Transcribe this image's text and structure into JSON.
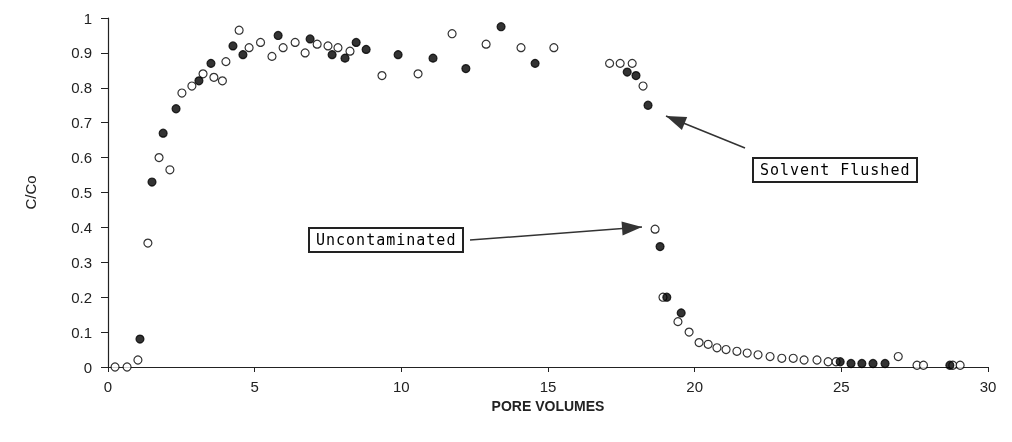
{
  "chart_data": {
    "type": "scatter",
    "xlabel": "PORE VOLUMES",
    "ylabel": "C/Co",
    "xlim": [
      0,
      30
    ],
    "xticks": [
      0,
      5,
      10,
      15,
      20,
      25,
      30
    ],
    "ylim": [
      0,
      1
    ],
    "yticks": [
      0,
      0.1,
      0.2,
      0.3,
      0.4,
      0.5,
      0.6,
      0.7,
      0.8,
      0.9,
      1
    ],
    "grid": false,
    "marker": "circle",
    "annotations": [
      "Uncontaminated",
      "Solvent Flushed"
    ],
    "series": [
      {
        "color": "#ffffff",
        "x": [
          0.24,
          0.65,
          1.02,
          1.36,
          1.74,
          2.11,
          2.52,
          2.86,
          3.24,
          3.61,
          3.9,
          4.02,
          4.47,
          4.81,
          5.2,
          5.59,
          5.97,
          6.38,
          6.72,
          7.13,
          7.5,
          7.84,
          8.25,
          9.34,
          10.57,
          11.73,
          12.89,
          14.08,
          15.2,
          17.1,
          17.46,
          17.87,
          18.24,
          18.65,
          18.92,
          19.43,
          19.81,
          20.15,
          20.46,
          20.76,
          21.07,
          21.44,
          21.79,
          22.16,
          22.57,
          22.97,
          23.36,
          23.73,
          24.17,
          24.55,
          24.82,
          26.94,
          27.58,
          27.8,
          28.8,
          29.05
        ],
        "values": [
          0,
          0,
          0.02,
          0.355,
          0.6,
          0.565,
          0.785,
          0.805,
          0.84,
          0.83,
          0.82,
          0.875,
          0.965,
          0.915,
          0.93,
          0.89,
          0.915,
          0.93,
          0.9,
          0.925,
          0.92,
          0.915,
          0.905,
          0.835,
          0.84,
          0.955,
          0.925,
          0.915,
          0.915,
          0.87,
          0.87,
          0.87,
          0.805,
          0.395,
          0.2,
          0.13,
          0.1,
          0.07,
          0.065,
          0.055,
          0.05,
          0.045,
          0.04,
          0.035,
          0.03,
          0.025,
          0.025,
          0.02,
          0.02,
          0.015,
          0.015,
          0.03,
          0.005,
          0.005,
          0.005,
          0.005
        ]
      },
      {
        "color": "#000000",
        "x": [
          1.09,
          1.5,
          1.88,
          2.32,
          3.1,
          3.51,
          4.26,
          4.6,
          5.8,
          6.89,
          7.64,
          8.08,
          8.46,
          8.8,
          9.89,
          11.08,
          12.2,
          13.4,
          14.56,
          17.7,
          18.0,
          18.41,
          18.82,
          19.05,
          19.54,
          24.96,
          25.33,
          25.7,
          26.08,
          26.49,
          28.7
        ],
        "values": [
          0.08,
          0.53,
          0.67,
          0.74,
          0.82,
          0.87,
          0.92,
          0.895,
          0.95,
          0.94,
          0.895,
          0.885,
          0.93,
          0.91,
          0.895,
          0.885,
          0.855,
          0.975,
          0.87,
          0.845,
          0.835,
          0.75,
          0.345,
          0.2,
          0.155,
          0.015,
          0.01,
          0.01,
          0.01,
          0.01,
          0.005
        ]
      }
    ]
  }
}
